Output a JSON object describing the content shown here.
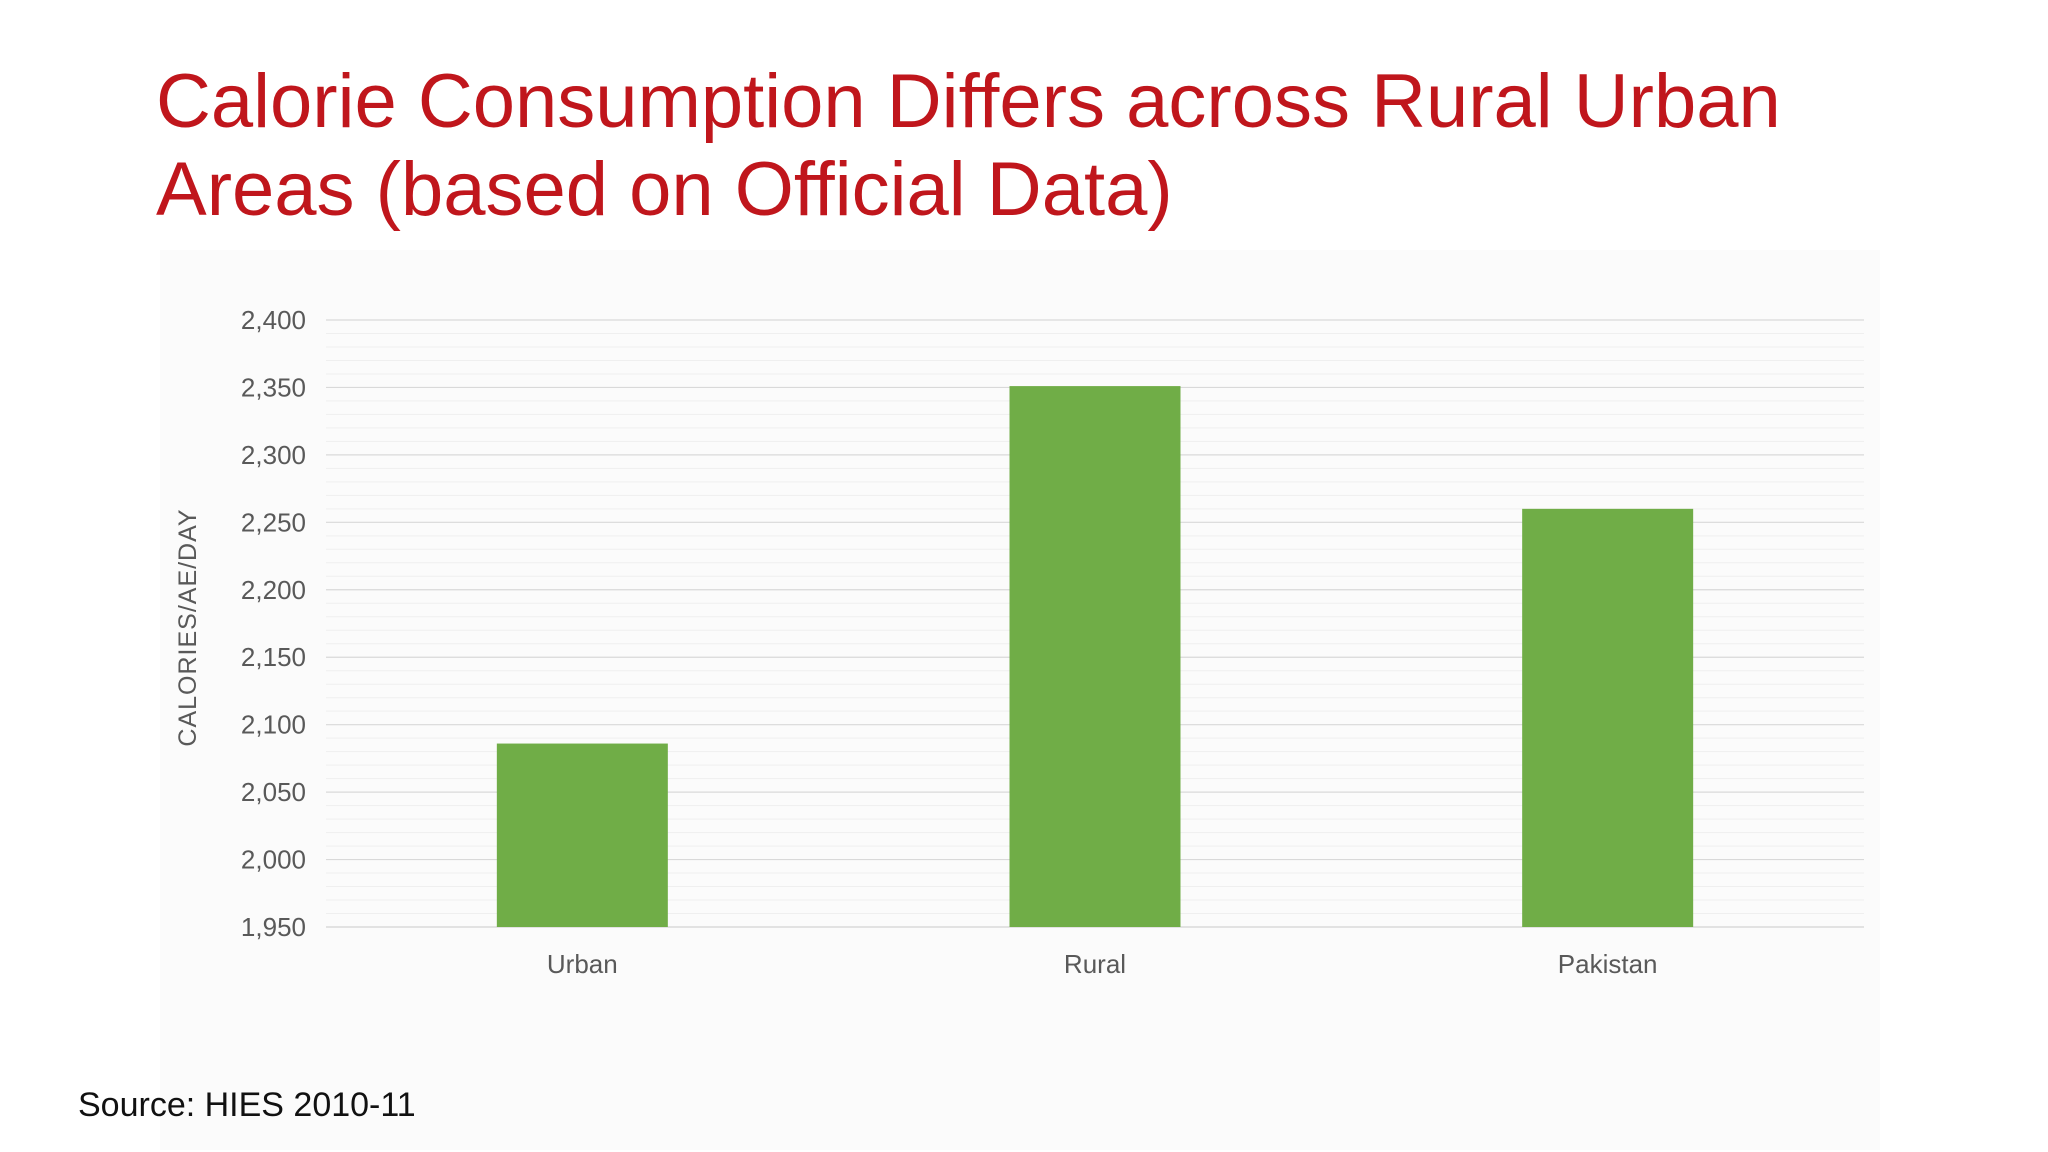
{
  "slide": {
    "title_line1": "Calorie Consumption Differs across Rural Urban",
    "title_line2": "Areas (based on Official Data)",
    "source": "Source: HIES 2010-11"
  },
  "colors": {
    "title": "#c0161c",
    "bar": "#70ad47",
    "grid_major": "#d9d9d9",
    "grid_minor": "#efefef",
    "text": "#595959"
  },
  "chart_data": {
    "type": "bar",
    "categories": [
      "Urban",
      "Rural",
      "Pakistan"
    ],
    "values": [
      2086,
      2351,
      2260
    ],
    "title": "",
    "xlabel": "",
    "ylabel": "CALORIES/AE/DAY",
    "ylim": [
      1950,
      2400
    ],
    "ytick_step": 50,
    "yticks": [
      "1,950",
      "2,000",
      "2,050",
      "2,100",
      "2,150",
      "2,200",
      "2,250",
      "2,300",
      "2,350",
      "2,400"
    ],
    "minor_gridlines": true,
    "legend": "none"
  }
}
